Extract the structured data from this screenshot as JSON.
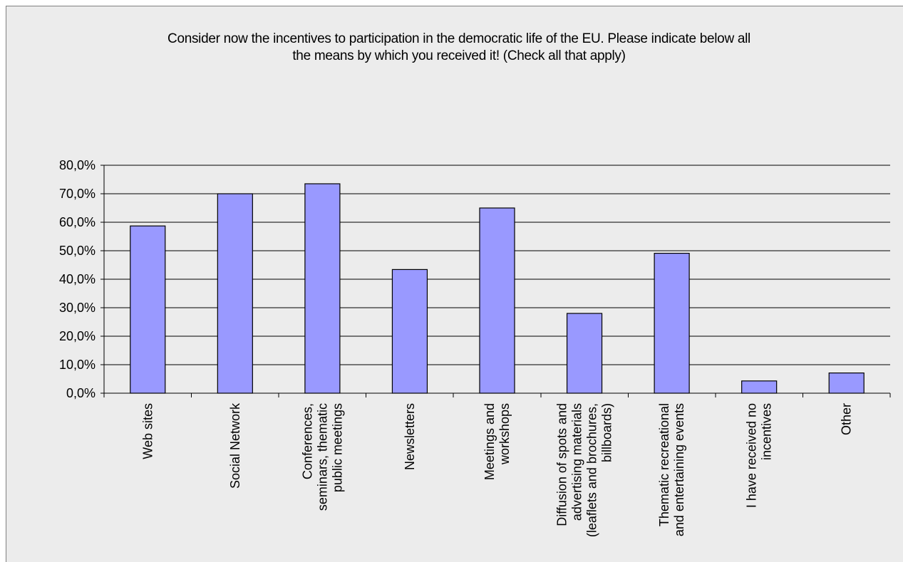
{
  "chart_data": {
    "type": "bar",
    "title": "Consider now the incentives to participation in the democratic life of the EU. Please indicate below all the means by which you received it! (Check all that apply)",
    "title_lines": [
      "Consider now the incentives to participation in the democratic life of the EU. Please indicate below all",
      "the means by which you received it! (Check all that apply)"
    ],
    "categories": [
      [
        "Web sites"
      ],
      [
        "Social Network"
      ],
      [
        "Conferences,",
        "seminars, thematic",
        "public meetings"
      ],
      [
        "Newsletters"
      ],
      [
        "Meetings and",
        "workshops"
      ],
      [
        "Diffusion of spots and",
        "advertising materials",
        "(leaflets and brochures,",
        "billboards)"
      ],
      [
        "Thematic recreational",
        "and entertaining events"
      ],
      [
        "I have received no",
        "incentives"
      ],
      [
        "Other"
      ]
    ],
    "values": [
      58.7,
      70.0,
      73.5,
      43.4,
      65.0,
      28.0,
      49.1,
      4.3,
      7.1
    ],
    "ylim": [
      0,
      80
    ],
    "yticks": [
      0,
      10,
      20,
      30,
      40,
      50,
      60,
      70,
      80
    ],
    "ytick_labels": [
      "0,0%",
      "10,0%",
      "20,0%",
      "30,0%",
      "40,0%",
      "50,0%",
      "60,0%",
      "70,0%",
      "80,0%"
    ],
    "xlabel": "",
    "ylabel": "",
    "grid": true,
    "legend": "none",
    "bar_color": "#9999ff",
    "bar_edge_color": "#000000",
    "background_color": "#ececec",
    "grid_color": "#000000"
  }
}
